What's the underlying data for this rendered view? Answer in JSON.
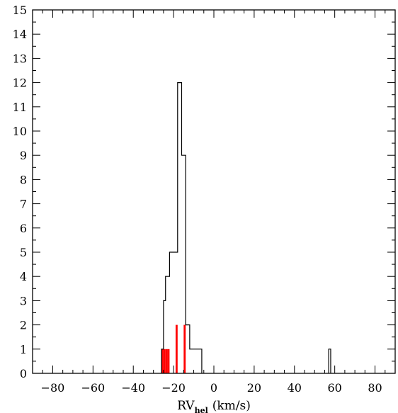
{
  "chart_data": {
    "type": "histogram",
    "xlabel_main": "RV",
    "xlabel_sub": "hel",
    "xlabel_unit": "(km/s)",
    "ylabel": "",
    "xlim": [
      -90,
      90
    ],
    "ylim": [
      0,
      15
    ],
    "x_ticks": [
      "−80",
      "−60",
      "−40",
      "−20",
      "0",
      "20",
      "40",
      "60",
      "80"
    ],
    "y_ticks": [
      "0",
      "1",
      "2",
      "3",
      "4",
      "5",
      "6",
      "7",
      "8",
      "9",
      "10",
      "11",
      "12",
      "13",
      "14",
      "15"
    ],
    "bin_width": 1,
    "series": [
      {
        "style": "step-outline",
        "color": "#000000",
        "bins": [
          {
            "x": -26,
            "count": 1
          },
          {
            "x": -25,
            "count": 3
          },
          {
            "x": -24,
            "count": 4
          },
          {
            "x": -23,
            "count": 4
          },
          {
            "x": -22,
            "count": 5
          },
          {
            "x": -21,
            "count": 5
          },
          {
            "x": -20,
            "count": 5
          },
          {
            "x": -19,
            "count": 5
          },
          {
            "x": -18,
            "count": 12
          },
          {
            "x": -17,
            "count": 12
          },
          {
            "x": -16,
            "count": 9
          },
          {
            "x": -15,
            "count": 9
          },
          {
            "x": -14,
            "count": 2
          },
          {
            "x": -13,
            "count": 2
          },
          {
            "x": -12,
            "count": 1
          },
          {
            "x": -11,
            "count": 1
          },
          {
            "x": -10,
            "count": 1
          },
          {
            "x": -9,
            "count": 1
          },
          {
            "x": -8,
            "count": 1
          },
          {
            "x": -7,
            "count": 1
          },
          {
            "x": 57,
            "count": 1
          }
        ]
      },
      {
        "style": "filled",
        "color": "#ff0000",
        "bins": [
          {
            "x": -26,
            "count": 1
          },
          {
            "x": -25,
            "count": 1
          },
          {
            "x": -24,
            "count": 1
          },
          {
            "x": -23,
            "count": 1
          },
          {
            "x": -19,
            "count": 2
          },
          {
            "x": -15,
            "count": 2
          }
        ]
      }
    ]
  }
}
